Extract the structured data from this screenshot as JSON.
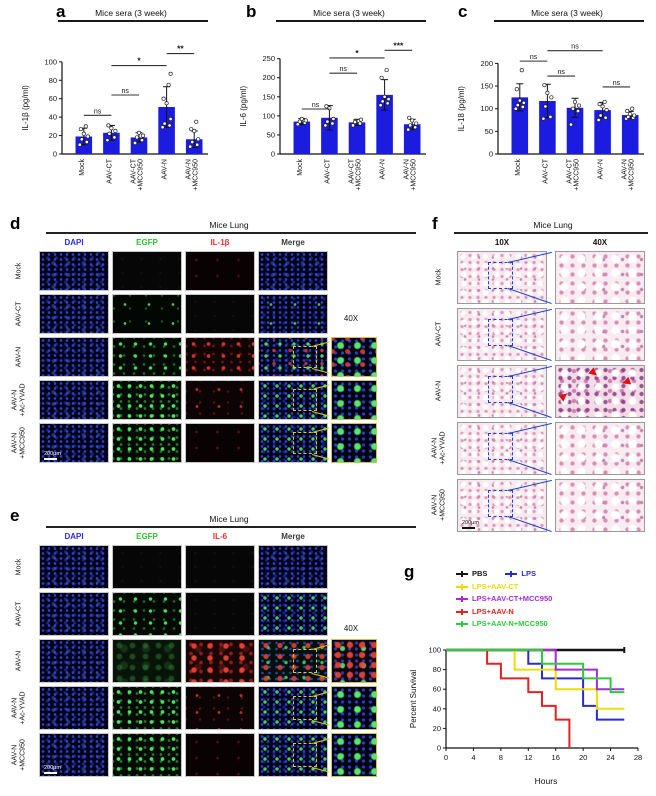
{
  "panels": {
    "a": {
      "letter": "a"
    },
    "b": {
      "letter": "b"
    },
    "c": {
      "letter": "c"
    },
    "d": {
      "letter": "d",
      "title": "Mice Lung",
      "mag": "40X",
      "scalebar": "200μm",
      "columns": [
        {
          "label": "DAPI",
          "color": "#2b2bf0"
        },
        {
          "label": "EGFP",
          "color": "#2bc42b"
        },
        {
          "label": "IL-1β",
          "color": "#ee2b2b"
        },
        {
          "label": "Merge",
          "color": "#3a3a3a"
        }
      ],
      "rows": [
        {
          "label": "Mock",
          "cells": [
            "dapi",
            "black",
            "red0",
            "dapi"
          ],
          "inset": null
        },
        {
          "label": "AAV-CT",
          "cells": [
            "dapi",
            "green1",
            "black",
            "merge1"
          ],
          "inset": null
        },
        {
          "label": "AAV-N",
          "cells": [
            "dapi",
            "green2",
            "red2",
            "merge3"
          ],
          "inset": "zoomgr"
        },
        {
          "label": "AAV-N\n+Ac-YVAD",
          "cells": [
            "dapi",
            "green3",
            "red1",
            "merge2"
          ],
          "inset": "zoomg"
        },
        {
          "label": "AAV-N\n+MCC950",
          "cells": [
            "dapi",
            "green3",
            "red0",
            "merge2"
          ],
          "inset": "zoomg"
        }
      ]
    },
    "e": {
      "letter": "e",
      "title": "Mice Lung",
      "mag": "40X",
      "scalebar": "200μm",
      "columns": [
        {
          "label": "DAPI",
          "color": "#2b2bf0"
        },
        {
          "label": "EGFP",
          "color": "#2bc42b"
        },
        {
          "label": "IL-6",
          "color": "#ee2b2b"
        },
        {
          "label": "Merge",
          "color": "#3a3a3a"
        }
      ],
      "rows": [
        {
          "label": "Mock",
          "cells": [
            "dapi",
            "black",
            "black",
            "dapi"
          ],
          "inset": null
        },
        {
          "label": "AAV-CT",
          "cells": [
            "dapi",
            "green2",
            "black",
            "merge2"
          ],
          "inset": null
        },
        {
          "label": "AAV-N",
          "cells": [
            "dapi",
            "greenfog",
            "red3",
            "merge4"
          ],
          "inset": "zoomr"
        },
        {
          "label": "AAV-N\n+Ac-YVAD",
          "cells": [
            "dapi",
            "green3",
            "red1",
            "merge2"
          ],
          "inset": "zoomg"
        },
        {
          "label": "AAV-N\n+MCC950",
          "cells": [
            "dapi",
            "green3",
            "red0",
            "merge2"
          ],
          "inset": "zoomg"
        }
      ]
    },
    "f": {
      "letter": "f",
      "title": "Mice Lung",
      "scalebar": "200μm",
      "columns": [
        "10X",
        "40X"
      ],
      "rows": [
        {
          "label": "Mock",
          "t10": "he10",
          "t40": "he40",
          "arrows": false
        },
        {
          "label": "AAV-CT",
          "t10": "he10",
          "t40": "he40",
          "arrows": false
        },
        {
          "label": "AAV-N",
          "t10": "he10",
          "t40": "he40d",
          "arrows": true
        },
        {
          "label": "AAV-N\n+Ac-YVAD",
          "t10": "he10",
          "t40": "he40",
          "arrows": false
        },
        {
          "label": "AAV-N\n+MCC950",
          "t10": "he10",
          "t40": "he40",
          "arrows": false
        }
      ]
    },
    "g": {
      "letter": "g"
    }
  },
  "chart_data": [
    {
      "id": "a",
      "type": "bar",
      "title": "Mice sera (3 week)",
      "ylabel": "IL-1β (pg/ml)",
      "ylim": [
        0,
        100
      ],
      "yticks": [
        0,
        20,
        40,
        60,
        80,
        100
      ],
      "categories": [
        "Mock",
        "AAV-CT",
        "AAV-CT\n+MCC950",
        "AAV-N",
        "AAV-N\n+MCC950"
      ],
      "values": [
        19,
        23,
        18,
        51,
        16
      ],
      "errors": [
        9,
        8,
        5,
        22,
        9
      ],
      "points": [
        [
          10,
          13,
          16,
          19,
          22,
          27,
          30
        ],
        [
          15,
          18,
          22,
          25,
          28,
          31
        ],
        [
          12,
          15,
          18,
          20,
          23
        ],
        [
          29,
          31,
          33,
          38,
          55,
          60,
          75,
          87
        ],
        [
          8,
          10,
          13,
          16,
          25,
          27,
          35
        ]
      ],
      "sig": [
        {
          "a": 0,
          "b": 1,
          "label": "ns",
          "y": 42
        },
        {
          "a": 1,
          "b": 2,
          "label": "ns",
          "y": 64
        },
        {
          "a": 1,
          "b": 3,
          "label": "*",
          "y": 96
        },
        {
          "a": 3,
          "b": 4,
          "label": "**",
          "y": 109
        }
      ],
      "bar_color": "#1c1ce0"
    },
    {
      "id": "b",
      "type": "bar",
      "title": "Mice sera (3 week)",
      "ylabel": "IL-6 (pg/ml)",
      "ylim": [
        0,
        250
      ],
      "yticks": [
        0,
        50,
        100,
        150,
        200,
        250
      ],
      "categories": [
        "Mock",
        "AAV-CT",
        "AAV-CT\n+MCC950",
        "AAV-N",
        "AAV-N\n+MCC950"
      ],
      "values": [
        85,
        95,
        83,
        155,
        78
      ],
      "errors": [
        8,
        32,
        8,
        40,
        13
      ],
      "points": [
        [
          78,
          82,
          85,
          88,
          92
        ],
        [
          75,
          80,
          85,
          92,
          120,
          125
        ],
        [
          75,
          80,
          84,
          90
        ],
        [
          128,
          133,
          138,
          144,
          150,
          200,
          220
        ],
        [
          64,
          70,
          75,
          80,
          88,
          95
        ]
      ],
      "sig": [
        {
          "a": 0,
          "b": 1,
          "label": "ns",
          "y": 118
        },
        {
          "a": 1,
          "b": 2,
          "label": "ns",
          "y": 212
        },
        {
          "a": 1,
          "b": 3,
          "label": "*",
          "y": 252
        },
        {
          "a": 3,
          "b": 4,
          "label": "***",
          "y": 272
        }
      ],
      "bar_color": "#1c1ce0"
    },
    {
      "id": "c",
      "type": "bar",
      "title": "Mice sera (3 week)",
      "ylabel": "IL-18 (pg/ml)",
      "ylim": [
        0,
        200
      ],
      "yticks": [
        0,
        50,
        100,
        150,
        200
      ],
      "categories": [
        "Mock",
        "AAV-CT",
        "AAV-CT\n+MCC950",
        "AAV-N",
        "AAV-N\n+MCC950"
      ],
      "values": [
        125,
        117,
        102,
        97,
        86
      ],
      "errors": [
        30,
        37,
        21,
        17,
        8
      ],
      "points": [
        [
          100,
          104,
          108,
          113,
          118,
          143,
          185
        ],
        [
          78,
          82,
          105,
          125,
          135,
          152
        ],
        [
          65,
          95,
          100,
          107,
          115
        ],
        [
          75,
          80,
          85,
          97,
          105,
          110,
          115
        ],
        [
          78,
          80,
          82,
          85,
          88,
          95,
          100
        ]
      ],
      "sig": [
        {
          "a": 0,
          "b": 1,
          "label": "ns",
          "y": 205
        },
        {
          "a": 1,
          "b": 2,
          "label": "ns",
          "y": 172
        },
        {
          "a": 1,
          "b": 3,
          "label": "ns",
          "y": 228
        },
        {
          "a": 3,
          "b": 4,
          "label": "ns",
          "y": 148
        }
      ],
      "bar_color": "#1c1ce0"
    },
    {
      "id": "g",
      "type": "survival",
      "xlabel": "Hours",
      "ylabel": "Percent Survival",
      "xlim": [
        0,
        28
      ],
      "xticks": [
        0,
        4,
        8,
        12,
        16,
        20,
        24,
        28
      ],
      "ylim": [
        0,
        100
      ],
      "yticks": [
        0,
        20,
        40,
        60,
        80,
        100
      ],
      "legend_position": "top-left",
      "series": [
        {
          "name": "PBS",
          "color": "#141414",
          "end_tick": true,
          "points": [
            [
              0,
              100
            ],
            [
              26,
              100
            ]
          ]
        },
        {
          "name": "LPS",
          "color": "#2a2ad2",
          "end_tick": false,
          "points": [
            [
              0,
              100
            ],
            [
              12,
              100
            ],
            [
              12,
              86
            ],
            [
              14,
              86
            ],
            [
              14,
              71
            ],
            [
              20,
              71
            ],
            [
              20,
              43
            ],
            [
              22,
              43
            ],
            [
              22,
              29
            ],
            [
              26,
              29
            ]
          ]
        },
        {
          "name": "LPS+AAV-CT",
          "color": "#ecdd08",
          "end_tick": false,
          "points": [
            [
              0,
              100
            ],
            [
              10,
              100
            ],
            [
              10,
              80
            ],
            [
              16,
              80
            ],
            [
              16,
              60
            ],
            [
              22,
              60
            ],
            [
              22,
              40
            ],
            [
              26,
              40
            ]
          ]
        },
        {
          "name": "LPS+AAV-CT+MCC950",
          "color": "#a42ad6",
          "end_tick": false,
          "points": [
            [
              0,
              100
            ],
            [
              16,
              100
            ],
            [
              16,
              80
            ],
            [
              22,
              80
            ],
            [
              22,
              60
            ],
            [
              26,
              60
            ]
          ]
        },
        {
          "name": "LPS+AAV-N",
          "color": "#e62020",
          "end_tick": false,
          "points": [
            [
              0,
              100
            ],
            [
              6,
              100
            ],
            [
              6,
              86
            ],
            [
              8,
              86
            ],
            [
              8,
              71
            ],
            [
              12,
              71
            ],
            [
              12,
              57
            ],
            [
              14,
              57
            ],
            [
              14,
              43
            ],
            [
              16,
              43
            ],
            [
              16,
              29
            ],
            [
              18,
              29
            ],
            [
              18,
              0
            ]
          ]
        },
        {
          "name": "LPS+AAV-N+MCC950",
          "color": "#2fca3a",
          "end_tick": false,
          "points": [
            [
              0,
              100
            ],
            [
              14,
              100
            ],
            [
              14,
              86
            ],
            [
              20,
              86
            ],
            [
              20,
              71
            ],
            [
              24,
              71
            ],
            [
              24,
              57
            ],
            [
              26,
              57
            ]
          ]
        }
      ]
    }
  ]
}
